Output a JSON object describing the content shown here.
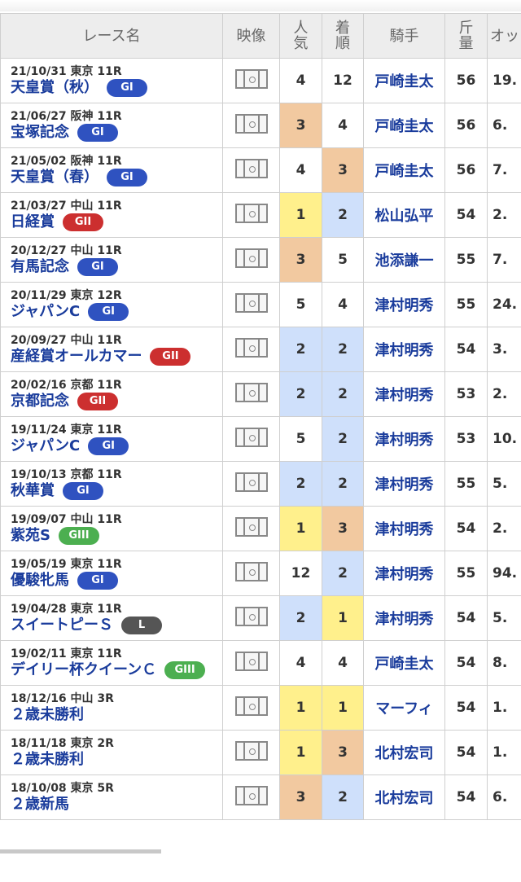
{
  "headers": {
    "race": "レース名",
    "video": "映像",
    "popularity": "人気",
    "finish": "着順",
    "jockey": "騎手",
    "weight": "斤量",
    "odds": "オッ"
  },
  "grade_colors": {
    "GI": "#2f52c0",
    "GII": "#cc2f2f",
    "GIII": "#4caf50",
    "L": "#555555"
  },
  "rank_colors": {
    "1": "#fff08c",
    "2": "#cfe0fb",
    "3": "#f2c9a0"
  },
  "rows": [
    {
      "meta": "21/10/31 東京 11R",
      "name": "天皇賞（秋）",
      "grade": "GI",
      "popularity": "4",
      "finish": "12",
      "jockey": "戸崎圭太",
      "weight": "56",
      "odds": "19."
    },
    {
      "meta": "21/06/27 阪神 11R",
      "name": "宝塚記念",
      "grade": "GI",
      "popularity": "3",
      "finish": "4",
      "jockey": "戸崎圭太",
      "weight": "56",
      "odds": "6."
    },
    {
      "meta": "21/05/02 阪神 11R",
      "name": "天皇賞（春）",
      "grade": "GI",
      "popularity": "4",
      "finish": "3",
      "jockey": "戸崎圭太",
      "weight": "56",
      "odds": "7."
    },
    {
      "meta": "21/03/27 中山 11R",
      "name": "日経賞",
      "grade": "GII",
      "popularity": "1",
      "finish": "2",
      "jockey": "松山弘平",
      "weight": "54",
      "odds": "2."
    },
    {
      "meta": "20/12/27 中山 11R",
      "name": "有馬記念",
      "grade": "GI",
      "popularity": "3",
      "finish": "5",
      "jockey": "池添謙一",
      "weight": "55",
      "odds": "7."
    },
    {
      "meta": "20/11/29 東京 12R",
      "name": "ジャパンC",
      "grade": "GI",
      "popularity": "5",
      "finish": "4",
      "jockey": "津村明秀",
      "weight": "55",
      "odds": "24."
    },
    {
      "meta": "20/09/27 中山 11R",
      "name": "産経賞オールカマー",
      "grade": "GII",
      "popularity": "2",
      "finish": "2",
      "jockey": "津村明秀",
      "weight": "54",
      "odds": "3."
    },
    {
      "meta": "20/02/16 京都 11R",
      "name": "京都記念",
      "grade": "GII",
      "popularity": "2",
      "finish": "2",
      "jockey": "津村明秀",
      "weight": "53",
      "odds": "2."
    },
    {
      "meta": "19/11/24 東京 11R",
      "name": "ジャパンC",
      "grade": "GI",
      "popularity": "5",
      "finish": "2",
      "jockey": "津村明秀",
      "weight": "53",
      "odds": "10."
    },
    {
      "meta": "19/10/13 京都 11R",
      "name": "秋華賞",
      "grade": "GI",
      "popularity": "2",
      "finish": "2",
      "jockey": "津村明秀",
      "weight": "55",
      "odds": "5."
    },
    {
      "meta": "19/09/07 中山 11R",
      "name": "紫苑S",
      "grade": "GIII",
      "popularity": "1",
      "finish": "3",
      "jockey": "津村明秀",
      "weight": "54",
      "odds": "2."
    },
    {
      "meta": "19/05/19 東京 11R",
      "name": "優駿牝馬",
      "grade": "GI",
      "popularity": "12",
      "finish": "2",
      "jockey": "津村明秀",
      "weight": "55",
      "odds": "94."
    },
    {
      "meta": "19/04/28 東京 11R",
      "name": "スイートピーＳ",
      "grade": "L",
      "popularity": "2",
      "finish": "1",
      "jockey": "津村明秀",
      "weight": "54",
      "odds": "5."
    },
    {
      "meta": "19/02/11 東京 11R",
      "name": "デイリー杯クイーンＣ",
      "grade": "GIII",
      "popularity": "4",
      "finish": "4",
      "jockey": "戸崎圭太",
      "weight": "54",
      "odds": "8."
    },
    {
      "meta": "18/12/16 中山 3R",
      "name": "２歳未勝利",
      "grade": "",
      "popularity": "1",
      "finish": "1",
      "jockey": "マーフィ",
      "weight": "54",
      "odds": "1."
    },
    {
      "meta": "18/11/18 東京 2R",
      "name": "２歳未勝利",
      "grade": "",
      "popularity": "1",
      "finish": "3",
      "jockey": "北村宏司",
      "weight": "54",
      "odds": "1."
    },
    {
      "meta": "18/10/08 東京 5R",
      "name": "２歳新馬",
      "grade": "",
      "popularity": "3",
      "finish": "2",
      "jockey": "北村宏司",
      "weight": "54",
      "odds": "6."
    }
  ]
}
